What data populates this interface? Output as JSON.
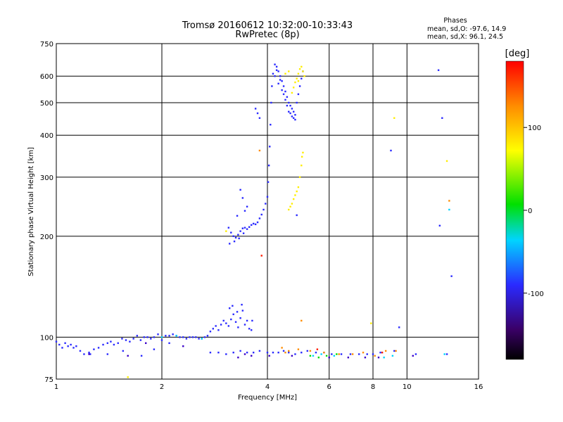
{
  "figure": {
    "title_line1": "Tromsø 20160612 10:32:00-10:33:43",
    "title_line2": "RwPretec (8p)",
    "phases_heading": "Phases",
    "phases_line_o": "mean, sd,O: -97.6, 14.9",
    "phases_line_x": "mean, sd,X:  96.1, 24.5"
  },
  "chart_data": {
    "type": "scatter",
    "xlabel": "Frequency [MHz]",
    "ylabel": "Stationary phase Virtual Height [km]",
    "xscale": "log",
    "yscale": "log",
    "xlim": [
      1,
      16
    ],
    "ylim": [
      75,
      750
    ],
    "x_ticks": [
      {
        "value": 1,
        "label": "1"
      },
      {
        "value": 2,
        "label": "2"
      },
      {
        "value": 4,
        "label": "4"
      },
      {
        "value": 6,
        "label": "6"
      },
      {
        "value": 8,
        "label": "8"
      },
      {
        "value": 10,
        "label": "10"
      },
      {
        "value": 16,
        "label": "16"
      }
    ],
    "y_ticks": [
      {
        "value": 75,
        "label": "75"
      },
      {
        "value": 100,
        "label": "100"
      },
      {
        "value": 200,
        "label": "200"
      },
      {
        "value": 300,
        "label": "300"
      },
      {
        "value": 400,
        "label": "400"
      },
      {
        "value": 500,
        "label": "500"
      },
      {
        "value": 600,
        "label": "600"
      },
      {
        "value": 750,
        "label": "750"
      }
    ],
    "x_grid": [
      2,
      4,
      6,
      8,
      10
    ],
    "y_grid": [
      100,
      200,
      300,
      400,
      500,
      600
    ],
    "grid": true,
    "colorbar": {
      "label": "[deg]",
      "range": [
        -180,
        180
      ],
      "ticks": [
        {
          "value": 100,
          "label": "100"
        },
        {
          "value": 0,
          "label": "0"
        },
        {
          "value": -100,
          "label": "-100"
        }
      ],
      "placement": "right"
    },
    "series": [
      {
        "phase": -100,
        "color": "#2a2aff",
        "points": [
          [
            1.0,
            97
          ],
          [
            1.02,
            95
          ],
          [
            1.04,
            93
          ],
          [
            1.06,
            96
          ],
          [
            1.08,
            94
          ],
          [
            1.1,
            95
          ],
          [
            1.12,
            93
          ],
          [
            1.14,
            94
          ],
          [
            1.17,
            91
          ],
          [
            1.2,
            89
          ],
          [
            1.24,
            90
          ],
          [
            1.28,
            92
          ],
          [
            1.32,
            93
          ],
          [
            1.36,
            95
          ],
          [
            1.4,
            96
          ],
          [
            1.43,
            97
          ],
          [
            1.46,
            95
          ],
          [
            1.5,
            96
          ],
          [
            1.54,
            99
          ],
          [
            1.58,
            98
          ],
          [
            1.62,
            97
          ],
          [
            1.66,
            99
          ],
          [
            1.7,
            101
          ],
          [
            1.74,
            98
          ],
          [
            1.78,
            100
          ],
          [
            1.82,
            100
          ],
          [
            1.86,
            99
          ],
          [
            1.9,
            100
          ],
          [
            1.95,
            102
          ],
          [
            2.0,
            98
          ],
          [
            2.05,
            101
          ],
          [
            2.1,
            101
          ],
          [
            2.15,
            102
          ],
          [
            2.2,
            101
          ],
          [
            2.25,
            100
          ],
          [
            2.3,
            100
          ],
          [
            2.35,
            99
          ],
          [
            2.4,
            100
          ],
          [
            2.45,
            100
          ],
          [
            2.5,
            100
          ],
          [
            2.55,
            99
          ],
          [
            2.6,
            99
          ],
          [
            2.65,
            100
          ],
          [
            2.7,
            101
          ],
          [
            2.75,
            104
          ],
          [
            2.8,
            106
          ],
          [
            2.85,
            108
          ],
          [
            2.9,
            105
          ],
          [
            2.95,
            109
          ],
          [
            3.0,
            112
          ],
          [
            3.05,
            110
          ],
          [
            3.1,
            108
          ],
          [
            3.15,
            113
          ],
          [
            3.2,
            117
          ],
          [
            3.25,
            111
          ],
          [
            3.3,
            107
          ],
          [
            3.35,
            114
          ],
          [
            3.4,
            120
          ],
          [
            3.45,
            109
          ],
          [
            3.5,
            112
          ],
          [
            3.55,
            106
          ],
          [
            3.6,
            105
          ],
          [
            3.12,
            122
          ],
          [
            3.18,
            124
          ],
          [
            3.28,
            119
          ],
          [
            3.38,
            125
          ],
          [
            3.62,
            112
          ],
          [
            1.25,
            89
          ],
          [
            1.4,
            89
          ],
          [
            1.55,
            91
          ],
          [
            1.75,
            88
          ],
          [
            1.9,
            92
          ],
          [
            2.1,
            96
          ],
          [
            2.75,
            90
          ],
          [
            2.9,
            90
          ],
          [
            3.05,
            89
          ],
          [
            3.2,
            90
          ],
          [
            3.35,
            91
          ],
          [
            3.5,
            90
          ],
          [
            3.65,
            90
          ],
          [
            3.8,
            91
          ],
          [
            4.0,
            90
          ],
          [
            4.15,
            90
          ],
          [
            4.3,
            90
          ],
          [
            4.45,
            91
          ],
          [
            4.6,
            90
          ],
          [
            4.8,
            89
          ],
          [
            5.0,
            90
          ],
          [
            5.2,
            91
          ],
          [
            5.5,
            90
          ],
          [
            5.8,
            90
          ],
          [
            6.1,
            89
          ],
          [
            6.5,
            89
          ],
          [
            6.9,
            89
          ],
          [
            7.3,
            89
          ],
          [
            7.7,
            89
          ],
          [
            8.0,
            89
          ],
          [
            8.4,
            90
          ],
          [
            9.2,
            91
          ],
          [
            10.6,
            89
          ],
          [
            13.0,
            89
          ],
          [
            3.1,
            212
          ],
          [
            3.15,
            205
          ],
          [
            3.2,
            200
          ],
          [
            3.25,
            198
          ],
          [
            3.3,
            202
          ],
          [
            3.35,
            207
          ],
          [
            3.4,
            211
          ],
          [
            3.45,
            212
          ],
          [
            3.5,
            210
          ],
          [
            3.55,
            213
          ],
          [
            3.6,
            216
          ],
          [
            3.65,
            218
          ],
          [
            3.7,
            217
          ],
          [
            3.75,
            220
          ],
          [
            3.8,
            226
          ],
          [
            3.85,
            232
          ],
          [
            3.9,
            240
          ],
          [
            3.95,
            250
          ],
          [
            4.0,
            262
          ],
          [
            4.02,
            290
          ],
          [
            4.04,
            325
          ],
          [
            4.06,
            370
          ],
          [
            4.08,
            430
          ],
          [
            4.1,
            500
          ],
          [
            4.12,
            560
          ],
          [
            3.12,
            190
          ],
          [
            3.22,
            193
          ],
          [
            3.32,
            197
          ],
          [
            3.42,
            204
          ],
          [
            3.28,
            230
          ],
          [
            3.4,
            260
          ],
          [
            3.5,
            245
          ],
          [
            3.35,
            275
          ],
          [
            3.45,
            238
          ],
          [
            3.7,
            480
          ],
          [
            3.75,
            465
          ],
          [
            3.8,
            450
          ],
          [
            4.15,
            610
          ],
          [
            4.2,
            650
          ],
          [
            4.25,
            640
          ],
          [
            4.3,
            620
          ],
          [
            4.35,
            600
          ],
          [
            4.4,
            580
          ],
          [
            4.45,
            560
          ],
          [
            4.5,
            540
          ],
          [
            4.55,
            520
          ],
          [
            4.6,
            500
          ],
          [
            4.65,
            490
          ],
          [
            4.7,
            480
          ],
          [
            4.75,
            470
          ],
          [
            4.8,
            460
          ],
          [
            4.85,
            500
          ],
          [
            4.9,
            530
          ],
          [
            4.95,
            560
          ],
          [
            5.0,
            590
          ],
          [
            5.05,
            620
          ],
          [
            4.2,
            600
          ],
          [
            4.3,
            570
          ],
          [
            4.4,
            545
          ],
          [
            4.5,
            510
          ],
          [
            4.6,
            470
          ],
          [
            4.7,
            455
          ],
          [
            4.8,
            445
          ],
          [
            4.25,
            625
          ],
          [
            4.35,
            585
          ],
          [
            4.45,
            530
          ],
          [
            4.55,
            490
          ],
          [
            4.65,
            465
          ],
          [
            4.75,
            450
          ],
          [
            4.85,
            231
          ],
          [
            12.3,
            625
          ],
          [
            12.4,
            215
          ],
          [
            13.4,
            152
          ],
          [
            12.6,
            450
          ],
          [
            9.0,
            360
          ],
          [
            9.5,
            107
          ]
        ]
      },
      {
        "phase": -130,
        "color": "#3a00c8",
        "points": [
          [
            1.24,
            89
          ],
          [
            1.6,
            88
          ],
          [
            1.8,
            96
          ],
          [
            2.3,
            94
          ],
          [
            3.3,
            87
          ],
          [
            3.45,
            89
          ],
          [
            3.6,
            88
          ],
          [
            4.05,
            88
          ],
          [
            4.7,
            88
          ],
          [
            6.0,
            87
          ],
          [
            6.8,
            87
          ],
          [
            7.6,
            87
          ],
          [
            8.3,
            87
          ],
          [
            10.4,
            88
          ]
        ]
      },
      {
        "phase": -40,
        "color": "#00d4ff",
        "points": [
          [
            2.0,
            100
          ],
          [
            2.2,
            101
          ],
          [
            2.6,
            99
          ],
          [
            5.4,
            88
          ],
          [
            5.7,
            89
          ],
          [
            6.2,
            88
          ],
          [
            8.6,
            87
          ],
          [
            9.1,
            88
          ],
          [
            13.2,
            240
          ],
          [
            12.8,
            89
          ]
        ]
      },
      {
        "phase": 20,
        "color": "#00e000",
        "points": [
          [
            5.3,
            88
          ],
          [
            5.6,
            87
          ],
          [
            5.9,
            88
          ],
          [
            6.3,
            89
          ]
        ]
      },
      {
        "phase": 105,
        "color": "#ffee00",
        "points": [
          [
            4.6,
            240
          ],
          [
            4.65,
            245
          ],
          [
            4.7,
            250
          ],
          [
            4.75,
            258
          ],
          [
            4.8,
            265
          ],
          [
            4.85,
            272
          ],
          [
            4.9,
            280
          ],
          [
            4.95,
            300
          ],
          [
            5.0,
            325
          ],
          [
            5.02,
            345
          ],
          [
            5.05,
            355
          ],
          [
            4.7,
            535
          ],
          [
            4.75,
            555
          ],
          [
            4.8,
            575
          ],
          [
            4.85,
            590
          ],
          [
            4.9,
            610
          ],
          [
            4.95,
            630
          ],
          [
            5.0,
            640
          ],
          [
            5.05,
            620
          ],
          [
            5.1,
            600
          ],
          [
            4.9,
            580
          ],
          [
            4.6,
            620
          ],
          [
            4.5,
            610
          ],
          [
            9.2,
            450
          ],
          [
            7.9,
            110
          ],
          [
            3.05,
            207
          ],
          [
            1.6,
            76
          ],
          [
            13.0,
            335
          ]
        ]
      },
      {
        "phase": 140,
        "color": "#ff8c00",
        "points": [
          [
            4.5,
            90
          ],
          [
            4.6,
            91
          ],
          [
            4.9,
            92
          ],
          [
            5.3,
            91
          ],
          [
            5.8,
            90
          ],
          [
            6.4,
            89
          ],
          [
            7.0,
            89
          ],
          [
            7.5,
            90
          ],
          [
            8.1,
            88
          ],
          [
            8.7,
            91
          ],
          [
            9.3,
            91
          ],
          [
            3.8,
            360
          ],
          [
            5.0,
            112
          ],
          [
            13.2,
            255
          ],
          [
            4.4,
            93
          ]
        ]
      },
      {
        "phase": 170,
        "color": "#ff1a00",
        "points": [
          [
            3.85,
            175
          ],
          [
            5.55,
            92
          ],
          [
            8.5,
            90
          ]
        ]
      }
    ]
  }
}
